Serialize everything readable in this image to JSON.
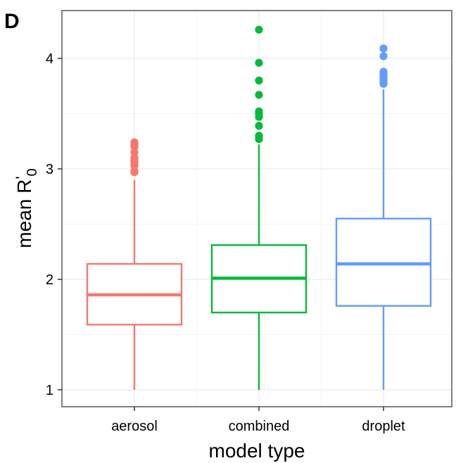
{
  "panel_label": "D",
  "chart_data": {
    "type": "boxplot",
    "xlabel": "model type",
    "ylabel": {
      "main": "mean R",
      "prime": "'",
      "subscript": "0"
    },
    "categories": [
      "aerosol",
      "combined",
      "droplet"
    ],
    "ylim": [
      0.85,
      4.45
    ],
    "yticks": [
      1,
      2,
      3,
      4
    ],
    "grid": true,
    "series": [
      {
        "category": "aerosol",
        "color": "#F8766D",
        "whisker_low": 1.0,
        "q1": 1.59,
        "median": 1.86,
        "q3": 2.14,
        "whisker_high": 2.9,
        "outliers": [
          2.97,
          2.98,
          3.03,
          3.06,
          3.08,
          3.1,
          3.15,
          3.2,
          3.22,
          3.24
        ]
      },
      {
        "category": "combined",
        "color": "#00BA38",
        "whisker_low": 1.0,
        "q1": 1.7,
        "median": 2.01,
        "q3": 2.31,
        "whisker_high": 3.22,
        "outliers": [
          3.27,
          3.3,
          3.39,
          3.47,
          3.5,
          3.52,
          3.67,
          3.8,
          3.96,
          4.26
        ]
      },
      {
        "category": "droplet",
        "color": "#619CFF",
        "whisker_low": 1.0,
        "q1": 1.76,
        "median": 2.14,
        "q3": 2.55,
        "whisker_high": 3.72,
        "outliers": [
          3.77,
          3.79,
          3.82,
          3.84,
          3.86,
          3.88,
          4.02,
          4.09
        ]
      }
    ]
  }
}
